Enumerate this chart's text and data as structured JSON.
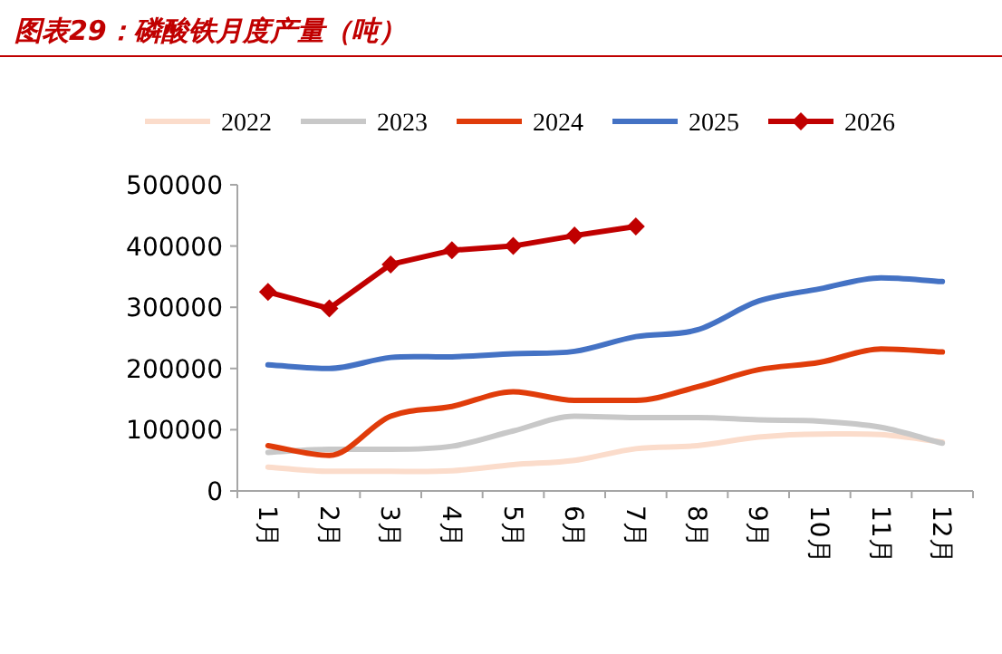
{
  "chart_data": {
    "type": "line",
    "title": "图表29：磷酸铁月度产量（吨）",
    "categories": [
      "1月",
      "2月",
      "3月",
      "4月",
      "5月",
      "6月",
      "7月",
      "8月",
      "9月",
      "10月",
      "11月",
      "12月"
    ],
    "series": [
      {
        "name": "2022",
        "color": "#fbdccb",
        "values": [
          39000,
          32000,
          32000,
          33000,
          43000,
          50000,
          69000,
          74000,
          88000,
          93000,
          92000,
          80000
        ]
      },
      {
        "name": "2023",
        "color": "#c8c8c8",
        "values": [
          63000,
          68000,
          68000,
          73000,
          98000,
          122000,
          120000,
          120000,
          116000,
          114000,
          104000,
          78000
        ]
      },
      {
        "name": "2024",
        "color": "#e03c0a",
        "values": [
          74000,
          58000,
          122000,
          138000,
          162000,
          148000,
          148000,
          170000,
          198000,
          210000,
          232000,
          227000
        ]
      },
      {
        "name": "2025",
        "color": "#4472c4",
        "values": [
          206000,
          200000,
          218000,
          219000,
          224000,
          228000,
          252000,
          263000,
          310000,
          330000,
          348000,
          342000
        ]
      },
      {
        "name": "2026",
        "color": "#c00000",
        "marker": "diamond",
        "values": [
          325000,
          298000,
          370000,
          393000,
          400000,
          417000,
          432000,
          null,
          null,
          null,
          null,
          null
        ]
      }
    ],
    "ylim": [
      0,
      500000
    ],
    "yticks": [
      0,
      100000,
      200000,
      300000,
      400000,
      500000
    ],
    "legend": "top"
  }
}
